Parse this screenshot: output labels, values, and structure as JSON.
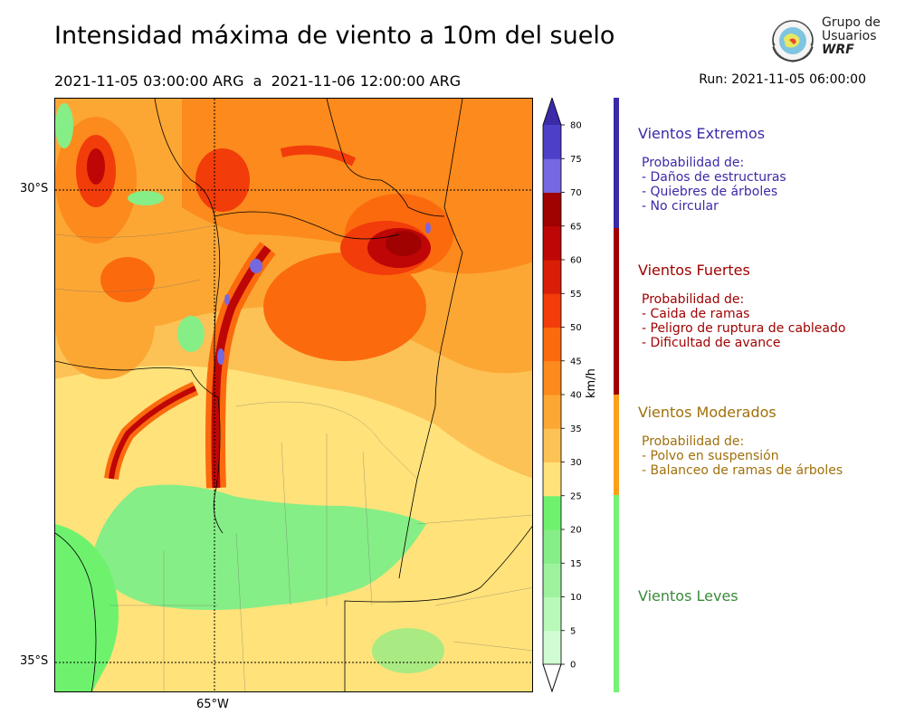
{
  "header": {
    "title": "Intensidad máxima de viento a 10m del suelo",
    "period": "2021-11-05 03:00:00 ARG  a  2021-11-06 12:00:00 ARG",
    "run": "Run: 2021-11-05 06:00:00"
  },
  "logo": {
    "line1": "Grupo de",
    "line2": "Usuarios",
    "line3": "WRF"
  },
  "map": {
    "lat_labels": [
      "30°S",
      "35°S"
    ],
    "lon_labels": [
      "65°W"
    ]
  },
  "colorbar": {
    "unit": "km/h",
    "ticks": [
      "0",
      "5",
      "10",
      "15",
      "20",
      "25",
      "30",
      "35",
      "40",
      "45",
      "50",
      "55",
      "60",
      "65",
      "70",
      "75",
      "80"
    ],
    "colors": [
      "#eaffea",
      "#d1fcd1",
      "#b8f8b8",
      "#9ef29e",
      "#86ee86",
      "#6ef26e",
      "#ffe27a",
      "#fcc256",
      "#fca734",
      "#fc8a1c",
      "#fc6a0e",
      "#f23c0a",
      "#d81e06",
      "#be0606",
      "#a00202",
      "#7668e0",
      "#4c40c8",
      "#3628b4"
    ],
    "over_color": "#3a2aa8",
    "under_color": "#ffffff"
  },
  "categories": [
    {
      "title": "Vientos Extremos",
      "color": "#3a2aa8",
      "desc": [
        "Probabilidad de:",
        "- Daños de estructuras",
        "- Quiebres de árboles",
        "- No circular"
      ]
    },
    {
      "title": "Vientos Fuertes",
      "color": "#a00202",
      "desc": [
        "Probabilidad de:",
        "- Caida de ramas",
        "- Peligro de ruptura de cableado",
        "- Dificultad de avance"
      ]
    },
    {
      "title": "Vientos Moderados",
      "color": "#a0700a",
      "bar": "#fca01a",
      "desc": [
        "Probabilidad de:",
        "- Polvo en suspensión",
        "- Balanceo de ramas de árboles"
      ]
    },
    {
      "title": "Vientos Leves",
      "color": "#3a8a3a",
      "bar": "#76f276",
      "desc": []
    }
  ]
}
